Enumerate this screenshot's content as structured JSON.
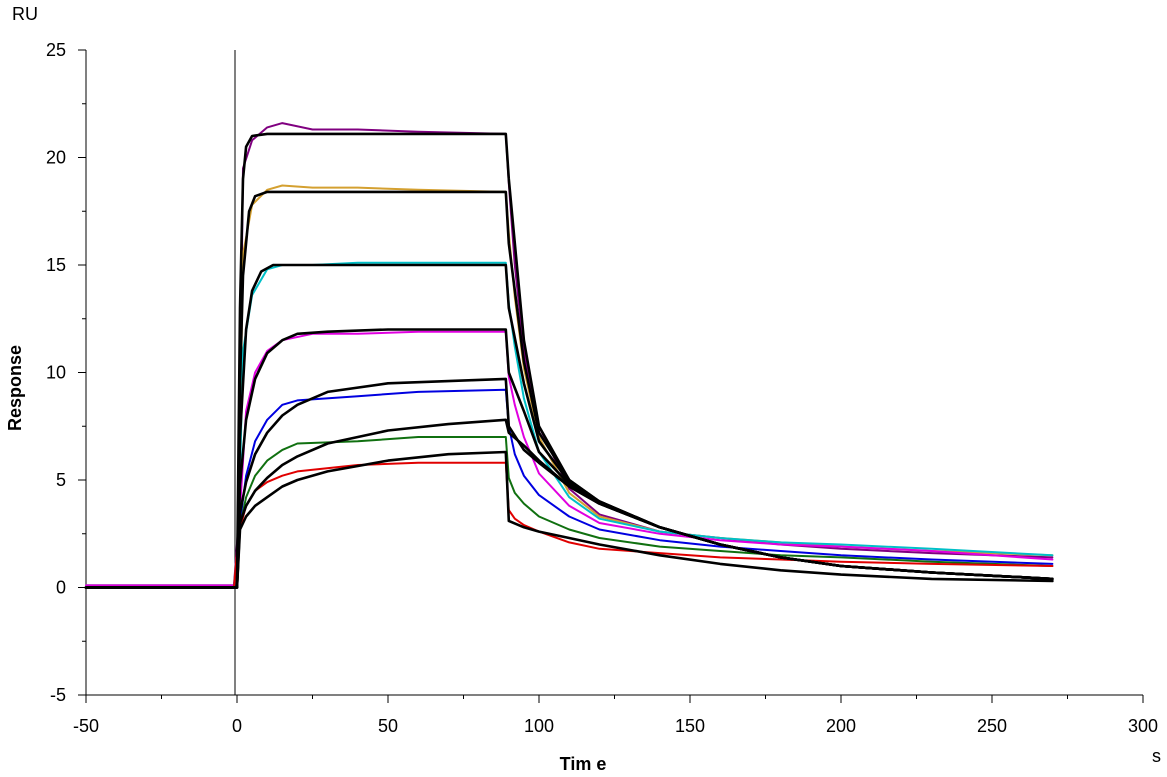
{
  "chart_data": {
    "type": "line",
    "title": "",
    "xlabel": "Tim e",
    "ylabel": "Response",
    "x_unit": "s",
    "y_unit": "RU",
    "xlim": [
      -50,
      300
    ],
    "ylim": [
      -5,
      25
    ],
    "x_ticks": [
      -50,
      0,
      50,
      100,
      150,
      200,
      250,
      300
    ],
    "y_ticks": [
      -5,
      0,
      5,
      10,
      15,
      20,
      25
    ],
    "x_tick_labels": [
      "-50",
      "0",
      "50",
      "100",
      "150",
      "200",
      "250",
      "300"
    ],
    "y_tick_labels": [
      "-5",
      "0",
      "5",
      "10",
      "15",
      "20",
      "25"
    ],
    "grid": false,
    "legend": "none",
    "series": [
      {
        "color": "#800080",
        "kind": "measured",
        "x": [
          -50,
          -1,
          0.5,
          2,
          5,
          10,
          15,
          25,
          40,
          60,
          89,
          90,
          92,
          95,
          100,
          110,
          120,
          140,
          160,
          180,
          200,
          230,
          270
        ],
        "y": [
          0.1,
          0.1,
          3.0,
          19.5,
          20.8,
          21.4,
          21.6,
          21.3,
          21.3,
          21.2,
          21.1,
          18.8,
          15.0,
          11.0,
          7.5,
          4.6,
          3.4,
          2.6,
          2.3,
          2.0,
          1.8,
          1.6,
          1.4
        ]
      },
      {
        "color": "#D4A030",
        "kind": "measured",
        "x": [
          -50,
          -1,
          0.5,
          2,
          5,
          10,
          15,
          25,
          40,
          60,
          89,
          90,
          92,
          95,
          100,
          110,
          120,
          140,
          160,
          180,
          200,
          230,
          270
        ],
        "y": [
          0.1,
          0.1,
          2.5,
          15.5,
          17.8,
          18.5,
          18.7,
          18.6,
          18.6,
          18.5,
          18.4,
          16.5,
          13.5,
          10.2,
          7.0,
          4.4,
          3.3,
          2.6,
          2.3,
          2.1,
          1.9,
          1.7,
          1.5
        ]
      },
      {
        "color": "#00C0C8",
        "kind": "measured",
        "x": [
          -50,
          -1,
          0.5,
          2,
          5,
          10,
          15,
          25,
          40,
          60,
          89,
          90,
          92,
          95,
          100,
          110,
          120,
          140,
          160,
          180,
          200,
          230,
          270
        ],
        "y": [
          0.1,
          0.1,
          2.3,
          11.0,
          13.6,
          14.8,
          15.0,
          15.0,
          15.1,
          15.1,
          15.1,
          13.2,
          11.2,
          8.8,
          6.3,
          4.2,
          3.2,
          2.6,
          2.3,
          2.1,
          2.0,
          1.8,
          1.5
        ]
      },
      {
        "color": "#E000E0",
        "kind": "measured",
        "x": [
          -50,
          -1,
          0.5,
          3,
          6,
          10,
          15,
          25,
          40,
          60,
          89,
          90,
          92,
          95,
          100,
          110,
          120,
          140,
          160,
          180,
          200,
          230,
          270
        ],
        "y": [
          0.1,
          0.1,
          2.5,
          8.2,
          10.0,
          11.0,
          11.5,
          11.8,
          11.8,
          11.9,
          11.9,
          9.8,
          8.5,
          7.0,
          5.3,
          3.8,
          3.0,
          2.5,
          2.2,
          2.0,
          1.9,
          1.7,
          1.3
        ]
      },
      {
        "color": "#0000E0",
        "kind": "measured",
        "x": [
          -50,
          -1,
          0.5,
          3,
          6,
          10,
          15,
          20,
          40,
          60,
          89,
          90,
          92,
          95,
          100,
          110,
          120,
          140,
          160,
          180,
          200,
          230,
          270
        ],
        "y": [
          0.0,
          0.0,
          2.5,
          5.2,
          6.8,
          7.8,
          8.5,
          8.7,
          8.9,
          9.1,
          9.2,
          7.5,
          6.2,
          5.2,
          4.3,
          3.3,
          2.7,
          2.2,
          1.9,
          1.7,
          1.5,
          1.3,
          1.1
        ]
      },
      {
        "color": "#107010",
        "kind": "measured",
        "x": [
          -50,
          -1,
          0.5,
          3,
          6,
          10,
          15,
          20,
          40,
          60,
          89,
          90,
          92,
          95,
          100,
          110,
          120,
          140,
          160,
          180,
          200,
          230,
          270
        ],
        "y": [
          0.0,
          0.0,
          2.5,
          4.2,
          5.2,
          5.9,
          6.4,
          6.7,
          6.8,
          7.0,
          7.0,
          5.1,
          4.4,
          3.9,
          3.3,
          2.7,
          2.3,
          1.9,
          1.7,
          1.5,
          1.4,
          1.2,
          1.0
        ]
      },
      {
        "color": "#E00000",
        "kind": "measured",
        "x": [
          -50,
          -1,
          0.5,
          3,
          6,
          10,
          15,
          20,
          40,
          60,
          89,
          90,
          92,
          95,
          100,
          110,
          120,
          140,
          160,
          180,
          200,
          230,
          270
        ],
        "y": [
          0.0,
          0.0,
          2.5,
          3.8,
          4.5,
          4.9,
          5.2,
          5.4,
          5.7,
          5.8,
          5.8,
          3.6,
          3.2,
          2.9,
          2.6,
          2.1,
          1.8,
          1.6,
          1.4,
          1.3,
          1.2,
          1.1,
          1.0
        ]
      },
      {
        "color": "#000000",
        "kind": "fit",
        "x": [
          -50,
          0,
          1,
          2,
          3,
          5,
          10,
          20,
          40,
          60,
          89,
          90,
          95,
          100,
          110,
          120,
          140,
          160,
          180,
          200,
          230,
          270
        ],
        "y": [
          0.0,
          0.0,
          13.0,
          19.0,
          20.5,
          21.0,
          21.1,
          21.1,
          21.1,
          21.1,
          21.1,
          19.0,
          11.5,
          7.5,
          5.0,
          4.0,
          2.8,
          2.0,
          1.4,
          1.0,
          0.7,
          0.4
        ]
      },
      {
        "color": "#000000",
        "kind": "fit",
        "x": [
          -50,
          0,
          1,
          2,
          4,
          6,
          10,
          20,
          40,
          60,
          89,
          90,
          95,
          100,
          110,
          120,
          140,
          160,
          180,
          200,
          230,
          270
        ],
        "y": [
          0.0,
          0.0,
          9.5,
          14.5,
          17.5,
          18.2,
          18.4,
          18.4,
          18.4,
          18.4,
          18.4,
          16.0,
          10.5,
          7.2,
          5.0,
          4.0,
          2.8,
          2.0,
          1.4,
          1.0,
          0.7,
          0.4
        ]
      },
      {
        "color": "#000000",
        "kind": "fit",
        "x": [
          -50,
          0,
          1,
          3,
          5,
          8,
          12,
          20,
          40,
          60,
          89,
          90,
          95,
          100,
          110,
          120,
          140,
          160,
          180,
          200,
          230,
          270
        ],
        "y": [
          0.0,
          0.0,
          7.0,
          12.0,
          13.8,
          14.7,
          15.0,
          15.0,
          15.0,
          15.0,
          15.0,
          13.0,
          9.5,
          6.8,
          4.9,
          4.0,
          2.8,
          2.0,
          1.4,
          1.0,
          0.7,
          0.4
        ]
      },
      {
        "color": "#000000",
        "kind": "fit",
        "x": [
          -50,
          0,
          1,
          3,
          6,
          10,
          15,
          20,
          30,
          50,
          89,
          90,
          95,
          100,
          110,
          120,
          140,
          160,
          180,
          200,
          230,
          270
        ],
        "y": [
          0.0,
          0.0,
          4.8,
          7.8,
          9.7,
          10.9,
          11.5,
          11.8,
          11.9,
          12.0,
          12.0,
          10.0,
          8.2,
          6.3,
          4.8,
          3.9,
          2.8,
          2.0,
          1.4,
          1.0,
          0.7,
          0.4
        ]
      },
      {
        "color": "#000000",
        "kind": "fit",
        "x": [
          -50,
          0,
          1,
          3,
          6,
          10,
          15,
          20,
          30,
          50,
          70,
          89,
          90,
          95,
          100,
          110,
          120,
          140,
          160,
          180,
          200,
          230,
          270
        ],
        "y": [
          0.0,
          0.0,
          3.5,
          4.9,
          6.2,
          7.2,
          8.0,
          8.5,
          9.1,
          9.5,
          9.6,
          9.7,
          7.5,
          6.4,
          5.8,
          4.7,
          3.9,
          2.8,
          2.0,
          1.4,
          1.0,
          0.7,
          0.4
        ]
      },
      {
        "color": "#000000",
        "kind": "fit",
        "x": [
          -50,
          0,
          1,
          3,
          6,
          10,
          15,
          20,
          30,
          50,
          70,
          89,
          90,
          95,
          100,
          110,
          120,
          140,
          160,
          180,
          200,
          230,
          270
        ],
        "y": [
          0.0,
          0.0,
          3.0,
          3.8,
          4.5,
          5.1,
          5.7,
          6.1,
          6.7,
          7.3,
          7.6,
          7.8,
          7.2,
          6.6,
          5.9,
          4.7,
          3.9,
          2.8,
          2.0,
          1.4,
          1.0,
          0.7,
          0.4
        ]
      },
      {
        "color": "#000000",
        "kind": "fit",
        "x": [
          -50,
          0,
          1,
          3,
          6,
          10,
          15,
          20,
          30,
          50,
          70,
          89,
          90,
          95,
          100,
          110,
          120,
          140,
          160,
          180,
          200,
          230,
          270
        ],
        "y": [
          0.0,
          0.0,
          2.7,
          3.3,
          3.8,
          4.2,
          4.7,
          5.0,
          5.4,
          5.9,
          6.2,
          6.3,
          3.1,
          2.8,
          2.6,
          2.3,
          2.0,
          1.5,
          1.1,
          0.8,
          0.6,
          0.4,
          0.3
        ]
      }
    ]
  }
}
